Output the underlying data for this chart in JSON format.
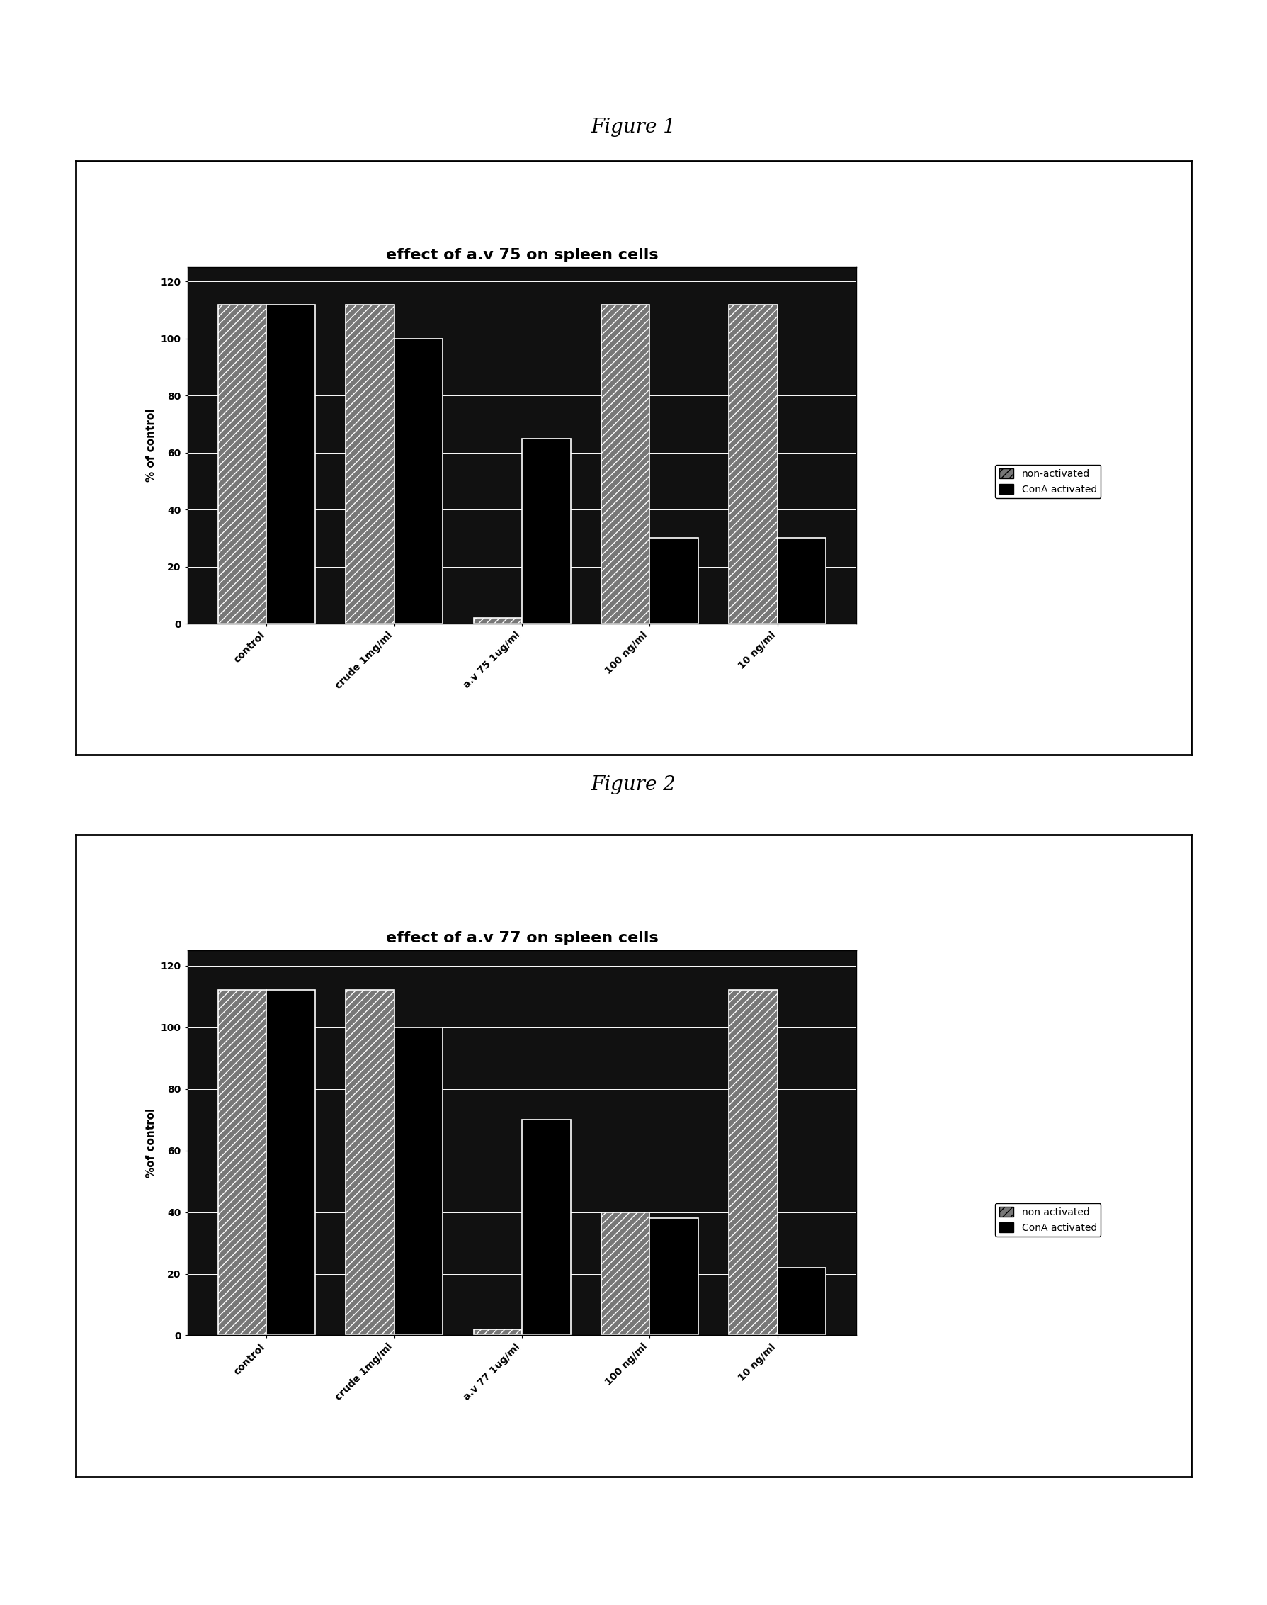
{
  "fig1": {
    "title": "effect of a.v 75 on spleen cells",
    "ylabel": "% of control",
    "categories": [
      "control",
      "crude 1mg/ml",
      "a.v 75 1ug/ml",
      "100 ng/ml",
      "10 ng/ml"
    ],
    "non_activated": [
      112,
      112,
      2,
      112,
      112
    ],
    "con_activated": [
      112,
      100,
      65,
      30,
      30
    ],
    "ylim": [
      0,
      125
    ],
    "yticks": [
      0,
      20,
      40,
      60,
      80,
      100,
      120
    ],
    "legend1": "non-activated",
    "legend2": "ConA activated"
  },
  "fig2": {
    "title": "effect of a.v 77 on spleen cells",
    "ylabel": "%of control",
    "categories": [
      "control",
      "crude 1mg/ml",
      "a.v 77 1ug/ml",
      "100 ng/ml",
      "10 ng/ml"
    ],
    "non_activated": [
      112,
      112,
      2,
      40,
      112
    ],
    "con_activated": [
      112,
      100,
      70,
      38,
      22
    ],
    "ylim": [
      0,
      125
    ],
    "yticks": [
      0,
      20,
      40,
      60,
      80,
      100,
      120
    ],
    "legend1": "non activated",
    "legend2": "ConA activated"
  },
  "figure1_label": "Figure 1",
  "figure2_label": "Figure 2",
  "bg_color": "#ffffff",
  "plot_bg": "#111111",
  "bar_color_non": "#888888",
  "bar_color_con": "#000000",
  "bar_width": 0.38
}
